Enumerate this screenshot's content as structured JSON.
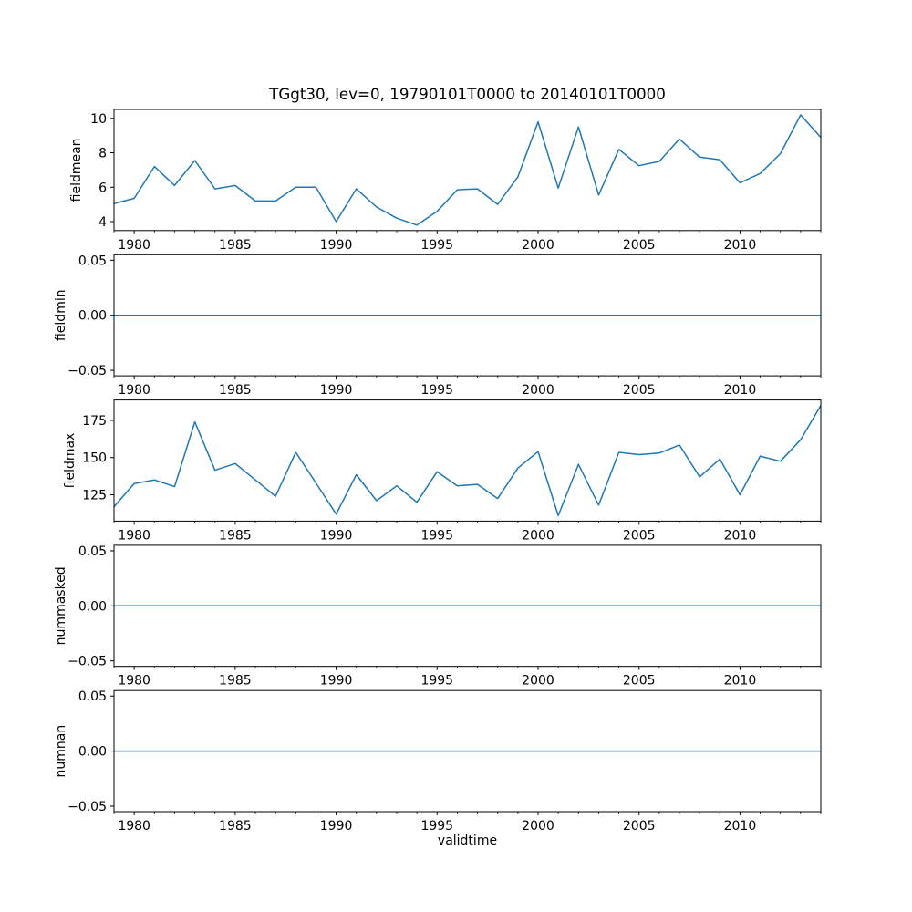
{
  "figure": {
    "title": "TGgt30, lev=0, 19790101T0000 to 20140101T0000",
    "xlabel": "validtime",
    "background_color": "#ffffff",
    "line_color": "#1f77b4",
    "axis_color": "#000000",
    "text_color": "#000000"
  },
  "chart_data": [
    {
      "type": "line",
      "ylabel": "fieldmean",
      "x": [
        1979,
        1980,
        1981,
        1982,
        1983,
        1984,
        1985,
        1986,
        1987,
        1988,
        1989,
        1990,
        1991,
        1992,
        1993,
        1994,
        1995,
        1996,
        1997,
        1998,
        1999,
        2000,
        2001,
        2002,
        2003,
        2004,
        2005,
        2006,
        2007,
        2008,
        2009,
        2010,
        2011,
        2012,
        2013,
        2014
      ],
      "values": [
        5.05,
        5.35,
        7.2,
        6.1,
        7.55,
        5.9,
        6.1,
        5.2,
        5.2,
        6.0,
        6.0,
        4.0,
        5.9,
        4.85,
        4.2,
        3.8,
        4.6,
        5.85,
        5.9,
        5.0,
        6.6,
        9.8,
        5.95,
        9.5,
        5.55,
        8.2,
        7.25,
        7.5,
        8.8,
        7.75,
        7.6,
        6.25,
        6.8,
        7.95,
        10.2,
        8.9
      ],
      "xlim": [
        1979,
        2014
      ],
      "ylim": [
        3.48,
        10.52
      ],
      "xticks": [
        1980,
        1985,
        1990,
        1995,
        2000,
        2005,
        2010
      ],
      "xticks_minor_every": 1,
      "yticks": [
        4,
        6,
        8,
        10
      ],
      "ytick_labels": [
        "4",
        "6",
        "8",
        "10"
      ],
      "grid": false,
      "legend": null
    },
    {
      "type": "line",
      "ylabel": "fieldmin",
      "x": [
        1979,
        1980,
        1981,
        1982,
        1983,
        1984,
        1985,
        1986,
        1987,
        1988,
        1989,
        1990,
        1991,
        1992,
        1993,
        1994,
        1995,
        1996,
        1997,
        1998,
        1999,
        2000,
        2001,
        2002,
        2003,
        2004,
        2005,
        2006,
        2007,
        2008,
        2009,
        2010,
        2011,
        2012,
        2013,
        2014
      ],
      "values": [
        0,
        0,
        0,
        0,
        0,
        0,
        0,
        0,
        0,
        0,
        0,
        0,
        0,
        0,
        0,
        0,
        0,
        0,
        0,
        0,
        0,
        0,
        0,
        0,
        0,
        0,
        0,
        0,
        0,
        0,
        0,
        0,
        0,
        0,
        0,
        0
      ],
      "xlim": [
        1979,
        2014
      ],
      "ylim": [
        -0.055,
        0.055
      ],
      "xticks": [
        1980,
        1985,
        1990,
        1995,
        2000,
        2005,
        2010
      ],
      "xticks_minor_every": 1,
      "yticks": [
        -0.05,
        0.0,
        0.05
      ],
      "ytick_labels": [
        "−0.05",
        "0.00",
        "0.05"
      ],
      "grid": false,
      "legend": null
    },
    {
      "type": "line",
      "ylabel": "fieldmax",
      "x": [
        1979,
        1980,
        1981,
        1982,
        1983,
        1984,
        1985,
        1986,
        1987,
        1988,
        1989,
        1990,
        1991,
        1992,
        1993,
        1994,
        1995,
        1996,
        1997,
        1998,
        1999,
        2000,
        2001,
        2002,
        2003,
        2004,
        2005,
        2006,
        2007,
        2008,
        2009,
        2010,
        2011,
        2012,
        2013,
        2014
      ],
      "values": [
        117,
        132.5,
        135,
        130.5,
        174,
        141.5,
        146,
        135,
        124,
        153.5,
        133,
        112,
        138.5,
        121,
        131,
        120,
        140.5,
        131,
        132,
        122.5,
        143,
        154,
        111,
        145.5,
        118,
        153.5,
        152,
        153,
        158.5,
        137,
        149,
        125,
        151,
        147.5,
        162,
        185
      ],
      "xlim": [
        1979,
        2014
      ],
      "ylim": [
        107.3,
        188.7
      ],
      "xticks": [
        1980,
        1985,
        1990,
        1995,
        2000,
        2005,
        2010
      ],
      "xticks_minor_every": 1,
      "yticks": [
        125,
        150,
        175
      ],
      "ytick_labels": [
        "125",
        "150",
        "175"
      ],
      "grid": false,
      "legend": null
    },
    {
      "type": "line",
      "ylabel": "nummasked",
      "x": [
        1979,
        1980,
        1981,
        1982,
        1983,
        1984,
        1985,
        1986,
        1987,
        1988,
        1989,
        1990,
        1991,
        1992,
        1993,
        1994,
        1995,
        1996,
        1997,
        1998,
        1999,
        2000,
        2001,
        2002,
        2003,
        2004,
        2005,
        2006,
        2007,
        2008,
        2009,
        2010,
        2011,
        2012,
        2013,
        2014
      ],
      "values": [
        0,
        0,
        0,
        0,
        0,
        0,
        0,
        0,
        0,
        0,
        0,
        0,
        0,
        0,
        0,
        0,
        0,
        0,
        0,
        0,
        0,
        0,
        0,
        0,
        0,
        0,
        0,
        0,
        0,
        0,
        0,
        0,
        0,
        0,
        0,
        0
      ],
      "xlim": [
        1979,
        2014
      ],
      "ylim": [
        -0.055,
        0.055
      ],
      "xticks": [
        1980,
        1985,
        1990,
        1995,
        2000,
        2005,
        2010
      ],
      "xticks_minor_every": 1,
      "yticks": [
        -0.05,
        0.0,
        0.05
      ],
      "ytick_labels": [
        "−0.05",
        "0.00",
        "0.05"
      ],
      "grid": false,
      "legend": null
    },
    {
      "type": "line",
      "ylabel": "numnan",
      "x": [
        1979,
        1980,
        1981,
        1982,
        1983,
        1984,
        1985,
        1986,
        1987,
        1988,
        1989,
        1990,
        1991,
        1992,
        1993,
        1994,
        1995,
        1996,
        1997,
        1998,
        1999,
        2000,
        2001,
        2002,
        2003,
        2004,
        2005,
        2006,
        2007,
        2008,
        2009,
        2010,
        2011,
        2012,
        2013,
        2014
      ],
      "values": [
        0,
        0,
        0,
        0,
        0,
        0,
        0,
        0,
        0,
        0,
        0,
        0,
        0,
        0,
        0,
        0,
        0,
        0,
        0,
        0,
        0,
        0,
        0,
        0,
        0,
        0,
        0,
        0,
        0,
        0,
        0,
        0,
        0,
        0,
        0,
        0
      ],
      "xlim": [
        1979,
        2014
      ],
      "ylim": [
        -0.055,
        0.055
      ],
      "xticks": [
        1980,
        1985,
        1990,
        1995,
        2000,
        2005,
        2010
      ],
      "xticks_minor_every": 1,
      "yticks": [
        -0.05,
        0.0,
        0.05
      ],
      "ytick_labels": [
        "−0.05",
        "0.00",
        "0.05"
      ],
      "grid": false,
      "legend": null
    }
  ]
}
